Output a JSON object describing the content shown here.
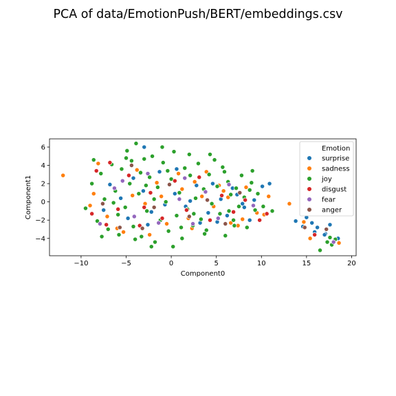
{
  "chart_data": {
    "type": "scatter",
    "title": "PCA of data/EmotionPush/BERT/embeddings.csv",
    "xlabel": "Component0",
    "ylabel": "Component1",
    "xlim": [
      -13.5,
      20.5
    ],
    "ylim": [
      -5.9,
      6.9
    ],
    "xticks": [
      -10,
      -5,
      0,
      5,
      10,
      15,
      20
    ],
    "yticks": [
      -4,
      -2,
      0,
      2,
      4,
      6
    ],
    "grid": false,
    "legend": {
      "title": "Emotion",
      "placement": "top-right"
    },
    "marker_edge_color": "#ffffff",
    "series": [
      {
        "name": "surprise",
        "color": "#1f77b4",
        "points": [
          [
            -4.2,
            2.6
          ],
          [
            -3.1,
            1.2
          ],
          [
            -5.6,
            0.4
          ],
          [
            -2.2,
            -1.1
          ],
          [
            0.4,
            0.9
          ],
          [
            1.6,
            -0.5
          ],
          [
            2.8,
            1.8
          ],
          [
            4.1,
            -1.2
          ],
          [
            5.5,
            0.3
          ],
          [
            6.2,
            -1.5
          ],
          [
            7.3,
            0.8
          ],
          [
            8.1,
            -0.6
          ],
          [
            9.2,
            0.2
          ],
          [
            -6.8,
            1.9
          ],
          [
            -7.5,
            -0.9
          ],
          [
            -1.3,
            3.3
          ],
          [
            3.2,
            -2.3
          ],
          [
            6.8,
            1.5
          ],
          [
            10.1,
            1.7
          ],
          [
            10.9,
            2.0
          ],
          [
            -3.0,
            6.0
          ],
          [
            0.6,
            3.6
          ],
          [
            -4.8,
            -1.8
          ],
          [
            5.1,
            -2.2
          ],
          [
            8.7,
            -2.0
          ],
          [
            7.9,
            -0.2
          ],
          [
            4.6,
            2.0
          ],
          [
            2.1,
            0.1
          ],
          [
            -0.7,
            -0.3
          ],
          [
            -2.6,
            -2.5
          ],
          [
            13.8,
            -2.1
          ],
          [
            15.0,
            -1.7
          ],
          [
            15.6,
            -2.3
          ],
          [
            16.2,
            -2.8
          ],
          [
            17.1,
            -3.5
          ],
          [
            17.6,
            -2.5
          ],
          [
            18.5,
            -4.0
          ],
          [
            14.6,
            -2.7
          ],
          [
            17.0,
            -3.6
          ],
          [
            15.9,
            -3.3
          ]
        ]
      },
      {
        "name": "sadness",
        "color": "#ff7f0e",
        "points": [
          [
            -12.0,
            2.9
          ],
          [
            -8.1,
            4.2
          ],
          [
            -8.6,
            0.9
          ],
          [
            -7.1,
            -1.6
          ],
          [
            -5.3,
            -3.3
          ],
          [
            -3.8,
            3.5
          ],
          [
            -2.9,
            -0.2
          ],
          [
            -1.6,
            2.1
          ],
          [
            -0.5,
            -2.4
          ],
          [
            0.8,
            3.1
          ],
          [
            1.9,
            -1.8
          ],
          [
            2.6,
            2.2
          ],
          [
            3.4,
            0.6
          ],
          [
            4.7,
            -0.5
          ],
          [
            5.8,
            1.2
          ],
          [
            6.6,
            -2.3
          ],
          [
            7.4,
            -2.6
          ],
          [
            8.3,
            1.6
          ],
          [
            9.5,
            -1.2
          ],
          [
            10.3,
            -1.4
          ],
          [
            10.8,
            0.6
          ],
          [
            13.1,
            -0.2
          ],
          [
            14.7,
            -2.2
          ],
          [
            15.4,
            -4.0
          ],
          [
            18.6,
            -4.5
          ],
          [
            -6.0,
            -2.9
          ],
          [
            -4.3,
            0.7
          ],
          [
            2.3,
            -2.9
          ],
          [
            5.3,
            1.8
          ],
          [
            -1.1,
            0.6
          ],
          [
            3.9,
            3.3
          ],
          [
            7.9,
            -1.9
          ],
          [
            -9.0,
            -0.4
          ],
          [
            -2.4,
            -3.6
          ],
          [
            1.2,
            1.4
          ],
          [
            6.3,
            0.5
          ]
        ]
      },
      {
        "name": "joy",
        "color": "#2ca02c",
        "points": [
          [
            -9.5,
            -0.7
          ],
          [
            -8.8,
            2.0
          ],
          [
            -8.2,
            -2.1
          ],
          [
            -7.8,
            3.1
          ],
          [
            -7.4,
            0.3
          ],
          [
            -7.0,
            -3.0
          ],
          [
            -6.6,
            4.1
          ],
          [
            -6.2,
            1.2
          ],
          [
            -5.9,
            -1.4
          ],
          [
            -5.5,
            3.6
          ],
          [
            -5.1,
            -0.6
          ],
          [
            -4.9,
            5.6
          ],
          [
            -4.6,
            2.0
          ],
          [
            -4.2,
            -2.7
          ],
          [
            -3.9,
            6.4
          ],
          [
            -3.6,
            0.9
          ],
          [
            -3.3,
            -3.8
          ],
          [
            -3.0,
            4.7
          ],
          [
            -2.7,
            -1.0
          ],
          [
            -2.4,
            2.7
          ],
          [
            -2.1,
            5.0
          ],
          [
            -1.8,
            -4.4
          ],
          [
            -1.5,
            1.6
          ],
          [
            -1.2,
            -2.0
          ],
          [
            -0.9,
            4.3
          ],
          [
            -0.6,
            0.0
          ],
          [
            -0.3,
            -3.2
          ],
          [
            0.0,
            2.5
          ],
          [
            0.3,
            5.5
          ],
          [
            0.6,
            -1.5
          ],
          [
            0.9,
            1.0
          ],
          [
            1.2,
            -4.0
          ],
          [
            1.5,
            3.7
          ],
          [
            1.8,
            -0.8
          ],
          [
            2.1,
            2.9
          ],
          [
            2.4,
            -2.6
          ],
          [
            2.7,
            0.4
          ],
          [
            3.0,
            4.2
          ],
          [
            3.3,
            -1.9
          ],
          [
            3.6,
            1.4
          ],
          [
            3.9,
            -3.1
          ],
          [
            4.2,
            3.0
          ],
          [
            4.5,
            -0.2
          ],
          [
            4.8,
            4.6
          ],
          [
            5.1,
            1.7
          ],
          [
            5.4,
            -1.3
          ],
          [
            5.7,
            3.8
          ],
          [
            6.0,
            -3.7
          ],
          [
            6.3,
            2.2
          ],
          [
            6.6,
            0.8
          ],
          [
            6.9,
            -2.0
          ],
          [
            7.2,
            1.5
          ],
          [
            7.5,
            -0.5
          ],
          [
            7.8,
            2.9
          ],
          [
            8.1,
            0.5
          ],
          [
            8.4,
            -2.8
          ],
          [
            8.7,
            1.3
          ],
          [
            9.0,
            3.4
          ],
          [
            9.3,
            -0.9
          ],
          [
            9.6,
            0.9
          ],
          [
            10.2,
            -0.5
          ],
          [
            11.2,
            -1.0
          ],
          [
            -4.0,
            -4.1
          ],
          [
            -5.8,
            -3.6
          ],
          [
            -7.7,
            -3.8
          ],
          [
            -3.4,
            3.2
          ],
          [
            -2.2,
            -4.9
          ],
          [
            0.2,
            -4.9
          ],
          [
            -1.0,
            6.0
          ],
          [
            4.3,
            5.2
          ],
          [
            5.9,
            3.3
          ],
          [
            2.0,
            5.2
          ],
          [
            -6.4,
            -0.1
          ],
          [
            -2.8,
            1.8
          ],
          [
            1.1,
            -2.8
          ],
          [
            3.7,
            -3.5
          ],
          [
            6.4,
            -1.0
          ],
          [
            -4.4,
            4.5
          ],
          [
            -0.4,
            3.4
          ],
          [
            2.5,
            -1.3
          ],
          [
            17.3,
            -4.4
          ],
          [
            17.8,
            -4.7
          ],
          [
            18.2,
            -4.1
          ],
          [
            16.5,
            -5.3
          ],
          [
            17.6,
            -3.9
          ],
          [
            -8.6,
            4.6
          ],
          [
            -5.0,
            4.8
          ],
          [
            8.9,
            2.1
          ],
          [
            7.0,
            -2.6
          ],
          [
            -1.9,
            0.3
          ]
        ]
      },
      {
        "name": "disgust",
        "color": "#d62728",
        "points": [
          [
            -8.8,
            -1.3
          ],
          [
            -8.3,
            3.4
          ],
          [
            -7.2,
            -2.5
          ],
          [
            -6.8,
            4.3
          ],
          [
            -5.9,
            -0.8
          ],
          [
            -4.7,
            2.9
          ],
          [
            -3.5,
            -2.6
          ],
          [
            -2.3,
            1.0
          ],
          [
            -1.0,
            -1.8
          ],
          [
            0.4,
            2.3
          ],
          [
            1.7,
            -0.9
          ],
          [
            3.1,
            2.7
          ],
          [
            4.3,
            -2.0
          ],
          [
            5.6,
            0.7
          ],
          [
            6.9,
            -1.1
          ],
          [
            8.2,
            0.2
          ],
          [
            9.8,
            -2.0
          ],
          [
            10.6,
            -1.3
          ],
          [
            15.9,
            -3.6
          ],
          [
            -3.0,
            -0.6
          ]
        ]
      },
      {
        "name": "fear",
        "color": "#9467bd",
        "points": [
          [
            -7.9,
            -2.4
          ],
          [
            -6.3,
            1.5
          ],
          [
            -4.1,
            -1.6
          ],
          [
            -2.6,
            3.1
          ],
          [
            -1.4,
            -2.3
          ],
          [
            0.9,
            0.3
          ],
          [
            2.4,
            -2.4
          ],
          [
            3.8,
            1.1
          ],
          [
            5.2,
            -1.8
          ],
          [
            6.4,
            1.9
          ],
          [
            9.1,
            -0.4
          ],
          [
            18.0,
            -4.4
          ],
          [
            -5.4,
            2.3
          ],
          [
            1.5,
            2.6
          ]
        ]
      },
      {
        "name": "anger",
        "color": "#8c564b",
        "points": [
          [
            -7.6,
            -0.2
          ],
          [
            -5.7,
            -2.8
          ],
          [
            -4.4,
            4.0
          ],
          [
            -1.9,
            -0.6
          ],
          [
            -0.2,
            1.9
          ],
          [
            2.0,
            -1.6
          ],
          [
            4.0,
            0.2
          ],
          [
            6.0,
            -2.4
          ],
          [
            7.6,
            1.0
          ],
          [
            14.8,
            -2.8
          ],
          [
            17.2,
            -3.0
          ],
          [
            -3.2,
            -2.9
          ]
        ]
      }
    ]
  }
}
